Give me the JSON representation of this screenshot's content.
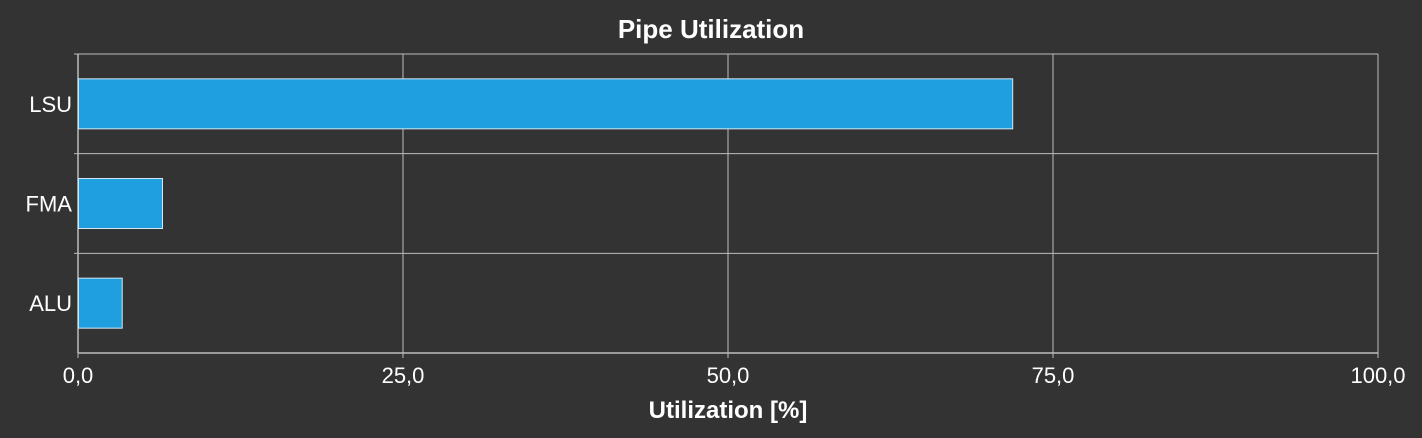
{
  "chart_data": {
    "type": "bar",
    "orientation": "horizontal",
    "title": "Pipe Utilization",
    "xlabel": "Utilization [%]",
    "ylabel": "",
    "categories": [
      "LSU",
      "FMA",
      "ALU"
    ],
    "values": [
      71.9,
      6.5,
      3.4
    ],
    "xlim": [
      0,
      100
    ],
    "x_ticks": [
      0,
      25,
      50,
      75,
      100
    ],
    "x_tick_labels": [
      "0,0",
      "25,0",
      "50,0",
      "75,0",
      "100,0"
    ],
    "grid": true,
    "legend": "none",
    "colors": {
      "background": "#333333",
      "bar_fill": "#1f9fe0",
      "bar_stroke": "#d0e8f5",
      "grid": "#bdbdbd",
      "text": "#ffffff"
    }
  }
}
